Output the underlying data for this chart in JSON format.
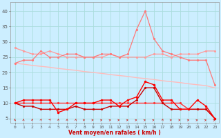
{
  "x": [
    0,
    1,
    2,
    3,
    4,
    5,
    6,
    7,
    8,
    9,
    10,
    11,
    12,
    13,
    14,
    15,
    16,
    17,
    18,
    19,
    20,
    21,
    22,
    23
  ],
  "line_diag": [
    23,
    22.7,
    22.3,
    22,
    21.7,
    21.3,
    21,
    20.7,
    20.3,
    20,
    19.7,
    19.3,
    19,
    18.7,
    18.3,
    18,
    17.7,
    17.3,
    17,
    16.7,
    16.3,
    16,
    15.7,
    15
  ],
  "line_flat1": [
    28,
    27,
    26,
    26,
    27,
    26,
    25,
    25,
    25,
    25,
    25,
    26,
    25,
    25,
    25,
    25,
    26,
    26,
    25,
    26,
    26,
    26,
    27,
    27
  ],
  "line_peaked": [
    23,
    24,
    24,
    27,
    25,
    25,
    26,
    26,
    25,
    25,
    26,
    26,
    25,
    26,
    34,
    40,
    31,
    27,
    26,
    25,
    24,
    24,
    24,
    16
  ],
  "line_mid1": [
    10,
    11,
    11,
    11,
    11,
    7,
    8,
    10,
    10,
    10,
    11,
    11,
    9,
    11,
    12,
    17,
    16,
    11,
    11,
    8,
    8,
    11,
    9,
    5
  ],
  "line_mid2": [
    10,
    9,
    9,
    8,
    8,
    8,
    8,
    9,
    8,
    8,
    8,
    9,
    9,
    9,
    11,
    15,
    15,
    10,
    8,
    8,
    8,
    8,
    8,
    5
  ],
  "line_flat2": [
    10,
    10,
    10,
    10,
    10,
    10,
    10,
    10,
    10,
    10,
    10,
    10,
    10,
    10,
    10,
    10,
    10,
    10,
    10,
    10,
    8,
    8,
    8,
    5
  ],
  "color_diag": "#ffbbbb",
  "color_flat1": "#ff9999",
  "color_peaked": "#ff7777",
  "color_mid1": "#ff0000",
  "color_mid2": "#cc0000",
  "color_flat2": "#ff3333",
  "bg_color": "#cceeff",
  "grid_color": "#aadddd",
  "xlabel": "Vent moyen/en rafales ( km/h )",
  "yticks": [
    5,
    10,
    15,
    20,
    25,
    30,
    35,
    40
  ],
  "xlim": [
    -0.5,
    23.5
  ],
  "ylim": [
    3.5,
    43
  ],
  "arrow_angles_deg": [
    90,
    85,
    80,
    75,
    65,
    80,
    88,
    82,
    5,
    5,
    10,
    15,
    10,
    10,
    15,
    20,
    20,
    78,
    5,
    5,
    10,
    15,
    20,
    25
  ]
}
